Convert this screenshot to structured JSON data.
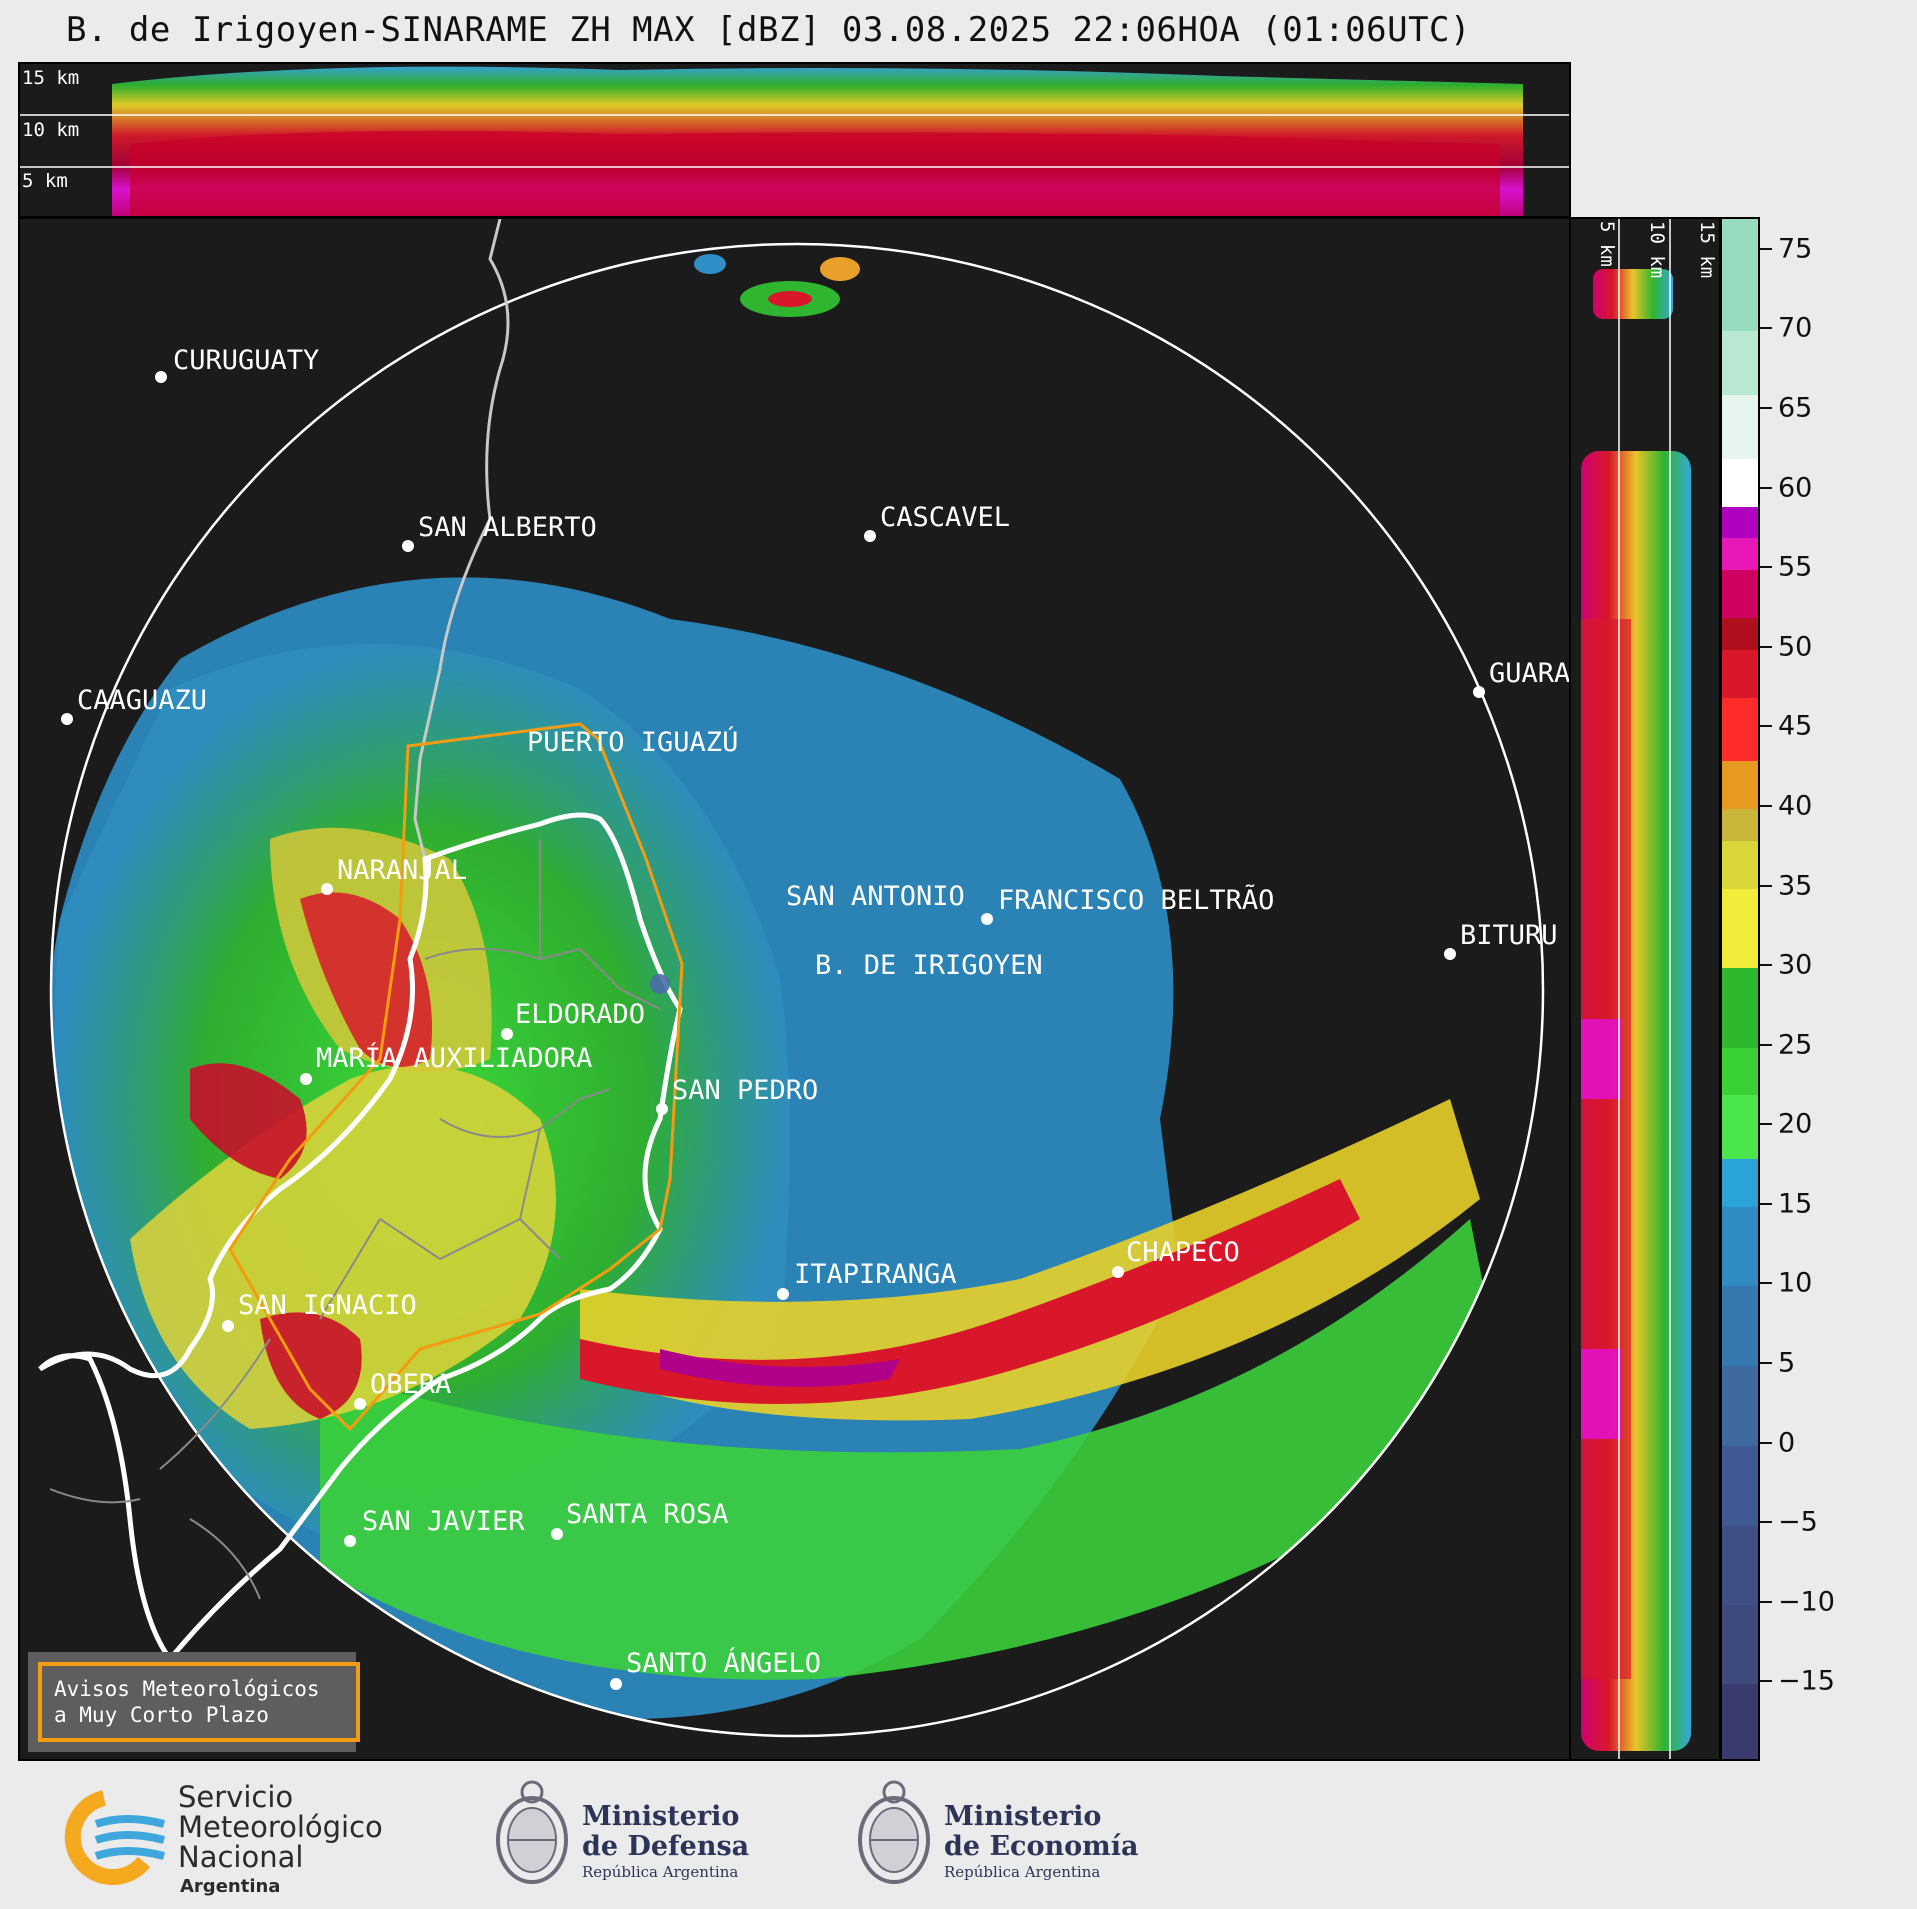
{
  "title": "B. de Irigoyen-SINARAME ZH MAX [dBZ] 03.08.2025 22:06HOA (01:06UTC)",
  "top_panel": {
    "height_labels": [
      "15 km",
      "10 km",
      "5 km"
    ]
  },
  "side_panel": {
    "height_labels": [
      "5 km",
      "10 km",
      "15 km"
    ]
  },
  "colorbar": {
    "unit": "dBZ",
    "ticks": [
      "75",
      "70",
      "65",
      "60",
      "55",
      "50",
      "45",
      "40",
      "35",
      "30",
      "25",
      "20",
      "15",
      "10",
      "5",
      "0",
      "−5",
      "−10",
      "−15"
    ],
    "range": [
      -20,
      77
    ]
  },
  "cities": [
    {
      "name": "CURUGUATY"
    },
    {
      "name": "SAN ALBERTO"
    },
    {
      "name": "CASCAVEL"
    },
    {
      "name": "CAAGUAZU"
    },
    {
      "name": "GUARA"
    },
    {
      "name": "PUERTO IGUAZÚ"
    },
    {
      "name": "NARANJAL"
    },
    {
      "name": "SAN ANTONIO"
    },
    {
      "name": "FRANCISCO BELTRÃO"
    },
    {
      "name": "BITURU"
    },
    {
      "name": "B. DE IRIGOYEN"
    },
    {
      "name": "ELDORADO"
    },
    {
      "name": "MARÍA AUXILIADORA"
    },
    {
      "name": "SAN PEDRO"
    },
    {
      "name": "CHAPECO"
    },
    {
      "name": "ITAPIRANGA"
    },
    {
      "name": "SAN IGNACIO"
    },
    {
      "name": "OBERA"
    },
    {
      "name": "SAN JAVIER"
    },
    {
      "name": "SANTA ROSA"
    },
    {
      "name": "SANTO ÁNGELO"
    }
  ],
  "warning_box": {
    "line1": "Avisos Meteorológicos",
    "line2": "a Muy Corto Plazo"
  },
  "logos": {
    "smn": {
      "line1": "Servicio",
      "line2": "Meteorológico",
      "line3": "Nacional",
      "line4": "Argentina"
    },
    "defensa": {
      "line1": "Ministerio",
      "line2": "de Defensa",
      "line3": "República Argentina"
    },
    "economia": {
      "line1": "Ministerio",
      "line2": "de Economía",
      "line3": "República Argentina"
    }
  }
}
